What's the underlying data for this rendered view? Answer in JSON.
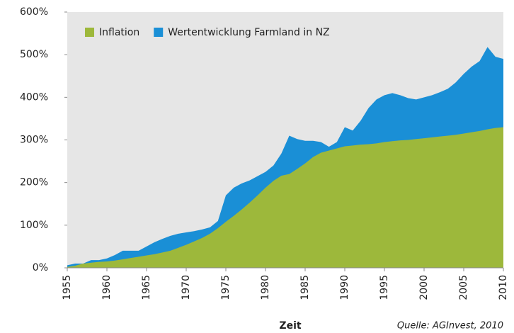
{
  "chart_data": {
    "type": "area",
    "x": [
      1955,
      1956,
      1957,
      1958,
      1959,
      1960,
      1961,
      1962,
      1963,
      1964,
      1965,
      1966,
      1967,
      1968,
      1969,
      1970,
      1971,
      1972,
      1973,
      1974,
      1975,
      1976,
      1977,
      1978,
      1979,
      1980,
      1981,
      1982,
      1983,
      1984,
      1985,
      1986,
      1987,
      1988,
      1989,
      1990,
      1991,
      1992,
      1993,
      1994,
      1995,
      1996,
      1997,
      1998,
      1999,
      2000,
      2001,
      2002,
      2003,
      2004,
      2005,
      2006,
      2007,
      2008,
      2009,
      2010
    ],
    "series": [
      {
        "name": "Wertentwicklung Farmland in NZ",
        "color": "#1a8fd6",
        "values": [
          6,
          10,
          10,
          18,
          18,
          22,
          30,
          40,
          40,
          40,
          50,
          60,
          68,
          75,
          80,
          83,
          86,
          90,
          95,
          110,
          170,
          188,
          198,
          205,
          215,
          225,
          240,
          268,
          310,
          302,
          298,
          298,
          295,
          284,
          295,
          330,
          322,
          345,
          375,
          395,
          405,
          410,
          405,
          398,
          395,
          400,
          405,
          412,
          420,
          435,
          455,
          472,
          485,
          518,
          495,
          490
        ]
      },
      {
        "name": "Inflation",
        "color": "#9db83b",
        "values": [
          2,
          5,
          10,
          12,
          14,
          15,
          17,
          20,
          23,
          26,
          29,
          32,
          36,
          40,
          47,
          54,
          62,
          70,
          80,
          93,
          108,
          122,
          137,
          153,
          170,
          188,
          204,
          216,
          220,
          232,
          245,
          260,
          270,
          275,
          280,
          285,
          287,
          289,
          290,
          292,
          295,
          297,
          299,
          300,
          302,
          304,
          306,
          308,
          310,
          312,
          315,
          318,
          321,
          325,
          328,
          330
        ]
      }
    ],
    "xlim": [
      1955,
      2010
    ],
    "xticks": [
      1955,
      1960,
      1965,
      1970,
      1975,
      1980,
      1985,
      1990,
      1995,
      2000,
      2005,
      2010
    ],
    "ylim": [
      0,
      600
    ],
    "yticks": [
      {
        "value": 0,
        "label": "0%"
      },
      {
        "value": 100,
        "label": "100%"
      },
      {
        "value": 200,
        "label": "200%"
      },
      {
        "value": 300,
        "label": "300%"
      },
      {
        "value": 400,
        "label": "400%"
      },
      {
        "value": 500,
        "label": "500%"
      },
      {
        "value": 600,
        "label": "600%"
      }
    ],
    "xlabel": "Zeit",
    "source": "Quelle: AGInvest, 2010",
    "legend": "upper left",
    "grid": false
  }
}
